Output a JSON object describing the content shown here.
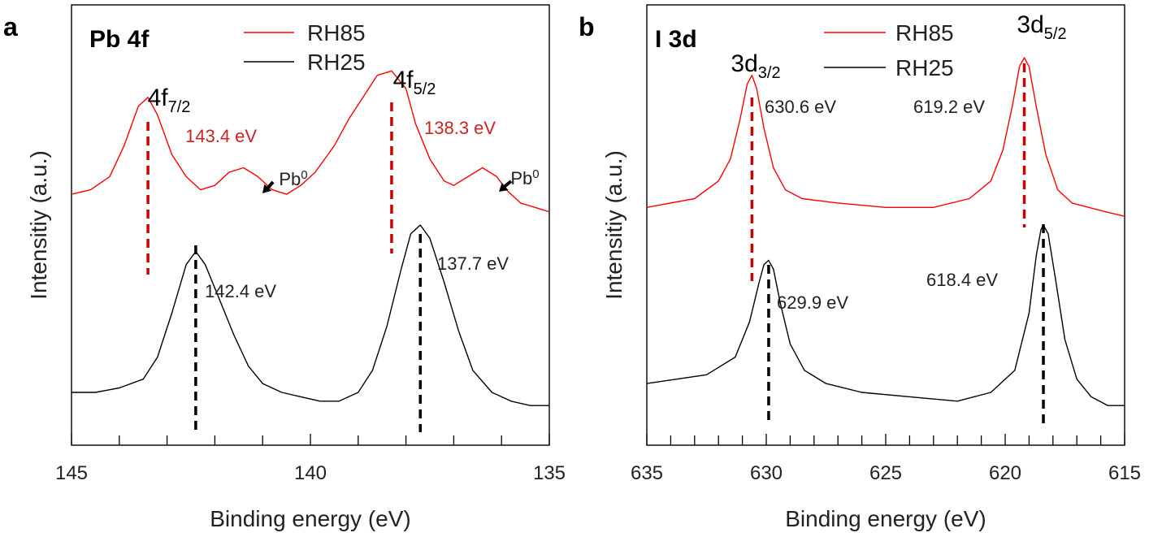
{
  "chart_data": [
    {
      "panel_letter": "a",
      "type": "line",
      "title": "Pb 4f",
      "xlabel": "Binding energy (eV)",
      "ylabel": "Intensitiy (a.u.)",
      "xlim": [
        145,
        135
      ],
      "x_reversed": true,
      "xticks": [
        "145",
        "140",
        "135"
      ],
      "yticks": "none",
      "grid": false,
      "legend_position": "top",
      "series": [
        {
          "name": "RH85",
          "color": "#ff0000",
          "x": [
            145.0,
            144.6,
            144.2,
            143.9,
            143.6,
            143.4,
            143.2,
            142.9,
            142.6,
            142.3,
            142.0,
            141.7,
            141.4,
            141.1,
            140.8,
            140.5,
            140.2,
            139.9,
            139.5,
            139.2,
            138.9,
            138.6,
            138.3,
            138.0,
            137.8,
            137.5,
            137.2,
            137.0,
            136.7,
            136.4,
            136.1,
            135.9,
            135.6,
            135.3,
            135.0
          ],
          "y": [
            0.57,
            0.58,
            0.61,
            0.68,
            0.77,
            0.79,
            0.75,
            0.66,
            0.61,
            0.58,
            0.59,
            0.62,
            0.63,
            0.61,
            0.58,
            0.57,
            0.59,
            0.62,
            0.68,
            0.74,
            0.79,
            0.84,
            0.85,
            0.81,
            0.73,
            0.65,
            0.6,
            0.59,
            0.61,
            0.63,
            0.61,
            0.58,
            0.55,
            0.54,
            0.53
          ]
        },
        {
          "name": "RH25",
          "color": "#000000",
          "x": [
            145.0,
            144.5,
            144.0,
            143.5,
            143.2,
            142.9,
            142.6,
            142.4,
            142.2,
            141.9,
            141.6,
            141.3,
            141.0,
            140.6,
            140.2,
            139.8,
            139.4,
            139.0,
            138.7,
            138.4,
            138.1,
            137.9,
            137.7,
            137.5,
            137.2,
            136.9,
            136.6,
            136.2,
            135.8,
            135.4,
            135.0
          ],
          "y": [
            0.12,
            0.12,
            0.13,
            0.15,
            0.2,
            0.3,
            0.41,
            0.44,
            0.41,
            0.33,
            0.25,
            0.18,
            0.14,
            0.12,
            0.11,
            0.1,
            0.1,
            0.12,
            0.17,
            0.27,
            0.4,
            0.48,
            0.5,
            0.47,
            0.37,
            0.26,
            0.17,
            0.12,
            0.1,
            0.09,
            0.09
          ]
        }
      ],
      "annotations": [
        {
          "peak": "4f",
          "sub": "7/2",
          "energy": "143.4 eV",
          "x": 143.4,
          "series": "RH85"
        },
        {
          "peak": "4f",
          "sub": "5/2",
          "energy": "138.3 eV",
          "x": 138.3,
          "series": "RH85"
        },
        {
          "energy": "142.4 eV",
          "x": 142.4,
          "series": "RH25"
        },
        {
          "energy": "137.7 eV",
          "x": 137.7,
          "series": "RH25"
        },
        {
          "label": "Pb",
          "sup": "0",
          "x": 141.1,
          "series": "RH85"
        },
        {
          "label": "Pb",
          "sup": "0",
          "x": 136.4,
          "series": "RH85"
        }
      ]
    },
    {
      "panel_letter": "b",
      "type": "line",
      "title": "I 3d",
      "xlabel": "Binding energy (eV)",
      "ylabel": "Intensitiy (a.u.)",
      "xlim": [
        635,
        615
      ],
      "x_reversed": true,
      "xticks": [
        "635",
        "630",
        "625",
        "620",
        "615"
      ],
      "yticks": "none",
      "grid": false,
      "legend_position": "top",
      "series": [
        {
          "name": "RH85",
          "color": "#ff0000",
          "x": [
            635.0,
            633.0,
            632.0,
            631.5,
            631.1,
            630.8,
            630.6,
            630.4,
            630.1,
            629.7,
            629.2,
            628.5,
            627.0,
            625.0,
            623.0,
            621.5,
            620.6,
            620.1,
            619.7,
            619.4,
            619.2,
            619.0,
            618.7,
            618.3,
            617.8,
            617.2,
            616.5,
            615.8,
            615.0
          ],
          "y": [
            0.54,
            0.56,
            0.6,
            0.65,
            0.74,
            0.82,
            0.84,
            0.81,
            0.72,
            0.63,
            0.58,
            0.56,
            0.55,
            0.54,
            0.54,
            0.56,
            0.6,
            0.67,
            0.77,
            0.86,
            0.88,
            0.86,
            0.77,
            0.66,
            0.58,
            0.55,
            0.54,
            0.53,
            0.52
          ]
        },
        {
          "name": "RH25",
          "color": "#000000",
          "x": [
            635.0,
            632.5,
            631.3,
            630.7,
            630.3,
            630.1,
            629.9,
            629.7,
            629.4,
            629.0,
            628.4,
            627.5,
            626.0,
            624.0,
            622.0,
            620.6,
            619.6,
            619.0,
            618.7,
            618.5,
            618.4,
            618.2,
            617.9,
            617.5,
            617.0,
            616.4,
            615.7,
            615.0
          ],
          "y": [
            0.14,
            0.16,
            0.2,
            0.28,
            0.37,
            0.41,
            0.42,
            0.4,
            0.32,
            0.23,
            0.17,
            0.14,
            0.12,
            0.11,
            0.1,
            0.12,
            0.17,
            0.3,
            0.43,
            0.49,
            0.5,
            0.48,
            0.38,
            0.24,
            0.15,
            0.11,
            0.09,
            0.09
          ]
        }
      ],
      "annotations": [
        {
          "peak": "3d",
          "sub": "3/2",
          "energy": "630.6 eV",
          "x": 630.6,
          "series": "RH85"
        },
        {
          "peak": "3d",
          "sub": "5/2",
          "energy": "619.2 eV",
          "x": 619.2,
          "series": "RH85"
        },
        {
          "energy": "629.9 eV",
          "x": 629.9,
          "series": "RH25"
        },
        {
          "energy": "618.4 eV",
          "x": 618.4,
          "series": "RH25"
        }
      ]
    }
  ]
}
